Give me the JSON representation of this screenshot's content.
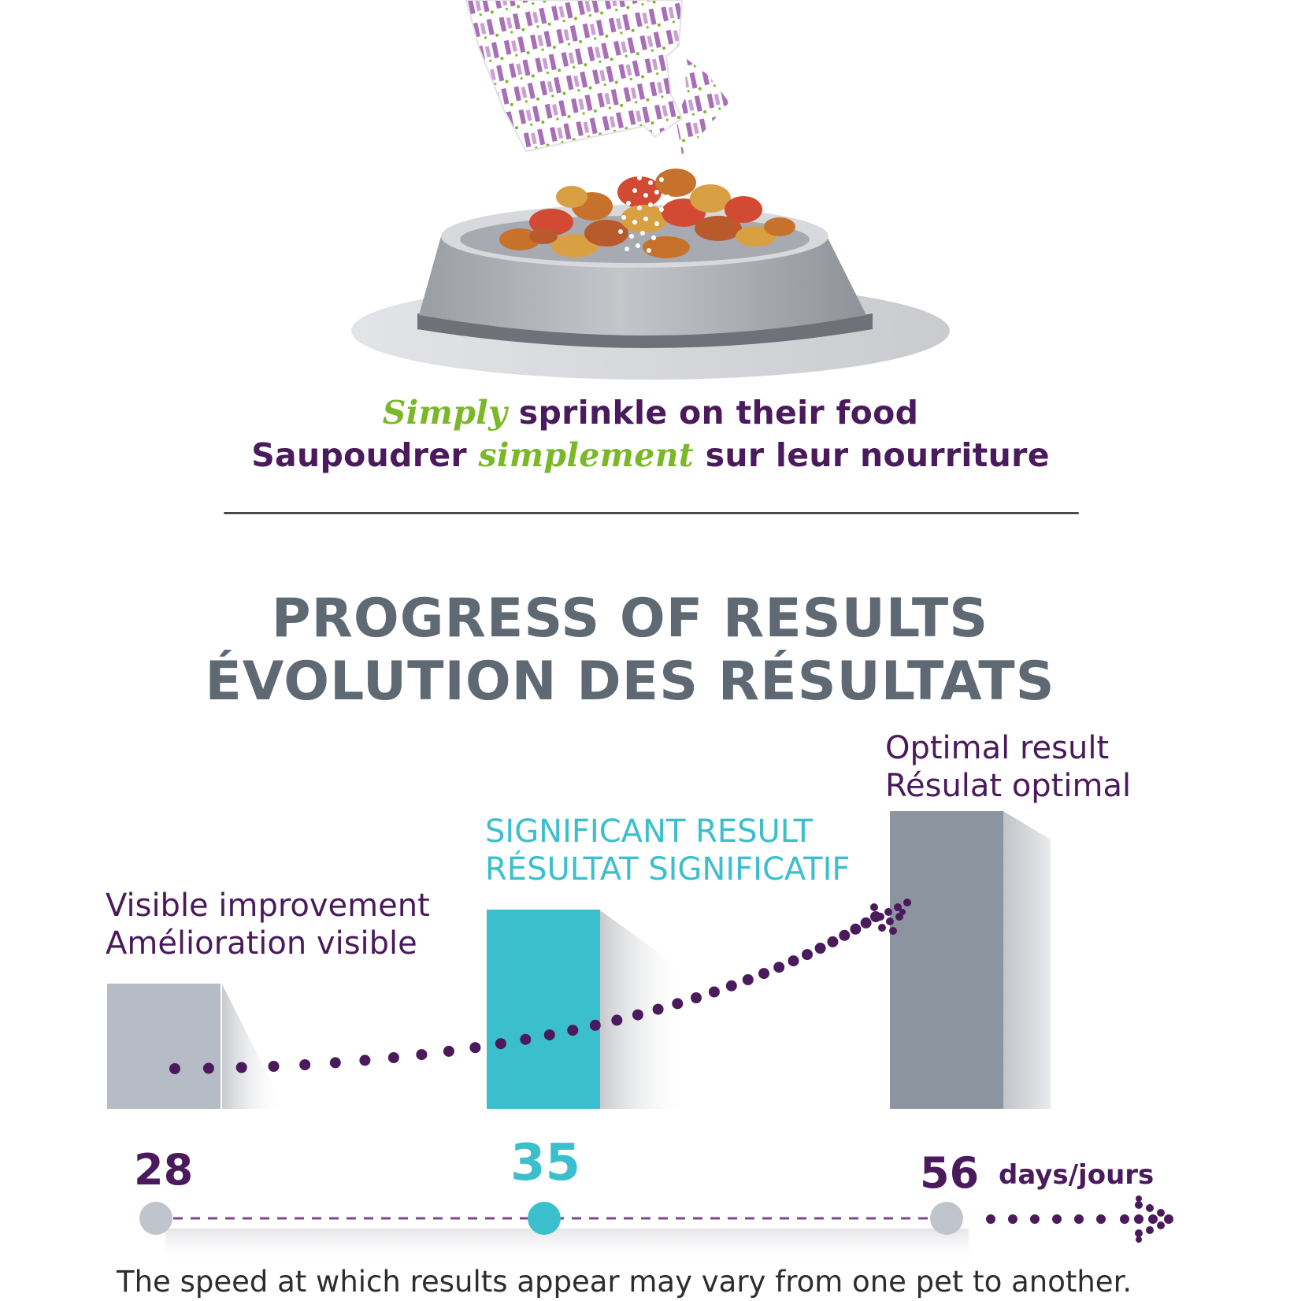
{
  "tagline": {
    "line1_accent": "Simply",
    "line1_rest": " sprinkle on their food",
    "line2_start": "Saupoudrer ",
    "line2_accent": "simplement",
    "line2_end": " sur leur nourriture"
  },
  "heading": {
    "line1": "PROGRESS OF RESULTS",
    "line2": "ÉVOLUTION DES RÉSULTATS"
  },
  "stages": [
    {
      "day": "28",
      "label_en": "Visible improvement",
      "label_fr": "Amélioration visible",
      "level": 0.42
    },
    {
      "day": "35",
      "label_en": "SIGNIFICANT RESULT",
      "label_fr": "RÉSULTAT SIGNIFICATIF",
      "level": 0.67
    },
    {
      "day": "56",
      "label_en": "Optimal result",
      "label_fr": "Résulat optimal",
      "level": 1.0
    }
  ],
  "unit": "days/jours",
  "footnote": "The speed at which results appear may vary from one pet to another.",
  "colors": {
    "purple": "#4a1a5c",
    "green": "#7ab828",
    "teal": "#3bbfcc",
    "heading_gray": "#5e6973",
    "bar_light_gray": "#b6bcc6",
    "bar_dark_gray": "#8b949f"
  }
}
